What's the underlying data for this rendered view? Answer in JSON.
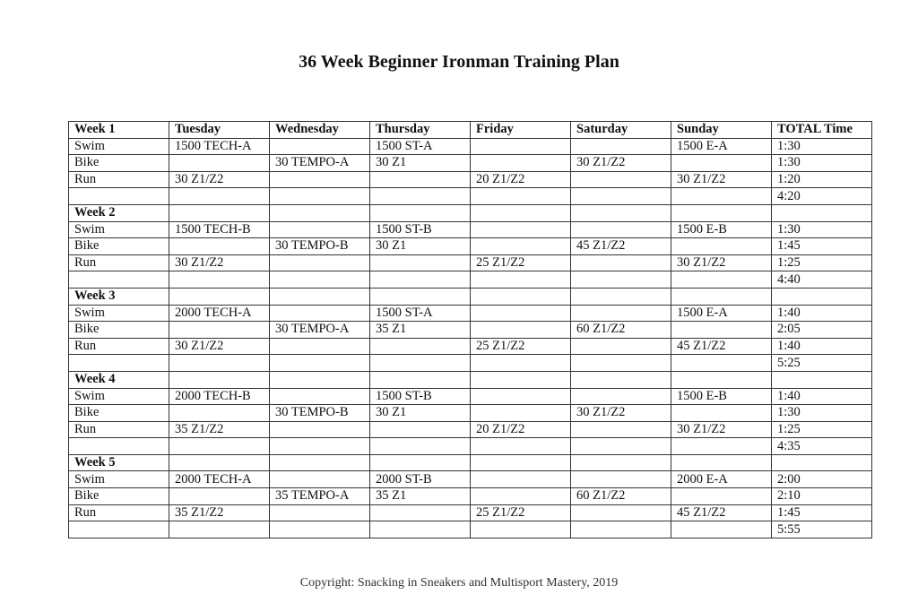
{
  "title": "36 Week Beginner Ironman Training Plan",
  "columns": [
    "Tuesday",
    "Wednesday",
    "Thursday",
    "Friday",
    "Saturday",
    "Sunday",
    "TOTAL Time"
  ],
  "weeks": [
    {
      "label": "Week 1",
      "rows": [
        [
          "Swim",
          "1500 TECH-A",
          "",
          "1500 ST-A",
          "",
          "",
          "1500 E-A",
          "1:30"
        ],
        [
          "Bike",
          "",
          "30 TEMPO-A",
          "30 Z1",
          "",
          "30 Z1/Z2",
          "",
          "1:30"
        ],
        [
          "Run",
          "30 Z1/Z2",
          "",
          "",
          "20 Z1/Z2",
          "",
          "30 Z1/Z2",
          "1:20"
        ],
        [
          "",
          "",
          "",
          "",
          "",
          "",
          "",
          "4:20"
        ]
      ]
    },
    {
      "label": "Week 2",
      "rows": [
        [
          "Swim",
          "1500 TECH-B",
          "",
          "1500 ST-B",
          "",
          "",
          "1500 E-B",
          "1:30"
        ],
        [
          "Bike",
          "",
          "30 TEMPO-B",
          "30 Z1",
          "",
          "45 Z1/Z2",
          "",
          "1:45"
        ],
        [
          "Run",
          "30 Z1/Z2",
          "",
          "",
          "25 Z1/Z2",
          "",
          "30 Z1/Z2",
          "1:25"
        ],
        [
          "",
          "",
          "",
          "",
          "",
          "",
          "",
          "4:40"
        ]
      ]
    },
    {
      "label": "Week 3",
      "rows": [
        [
          "Swim",
          "2000 TECH-A",
          "",
          "1500 ST-A",
          "",
          "",
          "1500 E-A",
          "1:40"
        ],
        [
          "Bike",
          "",
          "30 TEMPO-A",
          "35 Z1",
          "",
          "60 Z1/Z2",
          "",
          "2:05"
        ],
        [
          "Run",
          "30 Z1/Z2",
          "",
          "",
          "25 Z1/Z2",
          "",
          "45 Z1/Z2",
          "1:40"
        ],
        [
          "",
          "",
          "",
          "",
          "",
          "",
          "",
          "5:25"
        ]
      ]
    },
    {
      "label": "Week 4",
      "rows": [
        [
          "Swim",
          "2000 TECH-B",
          "",
          "1500 ST-B",
          "",
          "",
          "1500 E-B",
          "1:40"
        ],
        [
          "Bike",
          "",
          "30 TEMPO-B",
          "30 Z1",
          "",
          "30 Z1/Z2",
          "",
          "1:30"
        ],
        [
          "Run",
          "35 Z1/Z2",
          "",
          "",
          "20 Z1/Z2",
          "",
          "30 Z1/Z2",
          "1:25"
        ],
        [
          "",
          "",
          "",
          "",
          "",
          "",
          "",
          "4:35"
        ]
      ]
    },
    {
      "label": "Week 5",
      "rows": [
        [
          "Swim",
          "2000 TECH-A",
          "",
          "2000 ST-B",
          "",
          "",
          "2000 E-A",
          "2:00"
        ],
        [
          "Bike",
          "",
          "35 TEMPO-A",
          "35 Z1",
          "",
          "60 Z1/Z2",
          "",
          "2:10"
        ],
        [
          "Run",
          "35 Z1/Z2",
          "",
          "",
          "25 Z1/Z2",
          "",
          "45 Z1/Z2",
          "1:45"
        ],
        [
          "",
          "",
          "",
          "",
          "",
          "",
          "",
          "5:55"
        ]
      ]
    }
  ],
  "copyright": "Copyright: Snacking in Sneakers and Multisport Mastery, 2019"
}
